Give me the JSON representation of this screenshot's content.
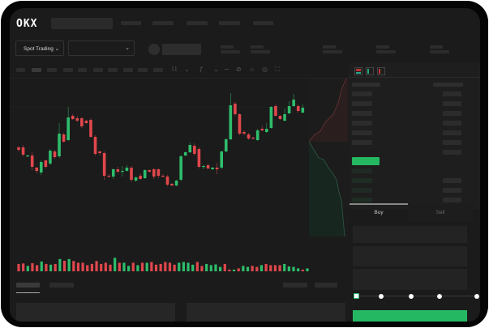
{
  "header": {
    "logo_text": "OKX"
  },
  "toolbar": {
    "market_type_label": "Spot Trading",
    "chevron_icon": "chevron-down-icon"
  },
  "order_form": {
    "tabs": [
      {
        "label": "Buy",
        "active": true
      },
      {
        "label": "Sell",
        "active": false
      }
    ]
  },
  "order_book": {
    "view_icons": [
      "order-book-both-icon",
      "order-book-bids-icon",
      "order-book-asks-icon"
    ]
  },
  "colors": {
    "up": "#2ebd6b",
    "down": "#e0474c",
    "background": "#1b1b1b",
    "accent": "#25b863"
  },
  "chart_data": {
    "type": "candlestick",
    "candles": [
      [
        118,
        120,
        113,
        115
      ],
      [
        118,
        121,
        107,
        109
      ],
      [
        107,
        109,
        106,
        108
      ],
      [
        108,
        112,
        90,
        94
      ],
      [
        93,
        94,
        86,
        89
      ],
      [
        87,
        102,
        84,
        100
      ],
      [
        102,
        103,
        92,
        94
      ],
      [
        98,
        116,
        96,
        114
      ],
      [
        113,
        115,
        104,
        106
      ],
      [
        107,
        148,
        105,
        135
      ],
      [
        134,
        136,
        124,
        125
      ],
      [
        127,
        168,
        126,
        155
      ],
      [
        157,
        159,
        152,
        153
      ],
      [
        154,
        157,
        149,
        151
      ],
      [
        154,
        156,
        142,
        144
      ],
      [
        151,
        152,
        147,
        148
      ],
      [
        152,
        154,
        130,
        131
      ],
      [
        131,
        133,
        108,
        110
      ],
      [
        113,
        114,
        108,
        111
      ],
      [
        111,
        113,
        78,
        83
      ],
      [
        83,
        85,
        81,
        82
      ],
      [
        82,
        92,
        79,
        91
      ],
      [
        91,
        94,
        86,
        88
      ],
      [
        88,
        95,
        82,
        89
      ],
      [
        89,
        96,
        88,
        93
      ],
      [
        93,
        95,
        75,
        78
      ],
      [
        77,
        82,
        75,
        81
      ],
      [
        83,
        86,
        78,
        79
      ],
      [
        80,
        91,
        79,
        90
      ],
      [
        90,
        91,
        87,
        88
      ],
      [
        91,
        93,
        79,
        82
      ],
      [
        91,
        92,
        80,
        83
      ],
      [
        83,
        85,
        81,
        82
      ],
      [
        82,
        84,
        70,
        72
      ],
      [
        73,
        74,
        70,
        71
      ],
      [
        71,
        78,
        70,
        77
      ],
      [
        78,
        109,
        76,
        107
      ],
      [
        108,
        113,
        107,
        112
      ],
      [
        112,
        124,
        111,
        121
      ],
      [
        120,
        123,
        108,
        110
      ],
      [
        116,
        118,
        92,
        94
      ],
      [
        94,
        97,
        91,
        95
      ],
      [
        96,
        98,
        91,
        92
      ],
      [
        91,
        94,
        90,
        93
      ],
      [
        93,
        99,
        85,
        91
      ],
      [
        93,
        114,
        91,
        113
      ],
      [
        113,
        130,
        112,
        128
      ],
      [
        128,
        185,
        127,
        170
      ],
      [
        172,
        174,
        157,
        159
      ],
      [
        159,
        160,
        133,
        135
      ],
      [
        137,
        139,
        133,
        135
      ],
      [
        134,
        136,
        127,
        129
      ],
      [
        130,
        131,
        128,
        129
      ],
      [
        127,
        141,
        126,
        139
      ],
      [
        141,
        145,
        138,
        139
      ],
      [
        137,
        148,
        136,
        141
      ],
      [
        142,
        169,
        141,
        168
      ],
      [
        169,
        171,
        156,
        157
      ],
      [
        157,
        158,
        152,
        153
      ],
      [
        151,
        166,
        150,
        159
      ],
      [
        160,
        175,
        159,
        169
      ],
      [
        169,
        184,
        168,
        177
      ],
      [
        169,
        171,
        161,
        163
      ],
      [
        161,
        171,
        160,
        167
      ]
    ],
    "volume": [
      {
        "v": 30,
        "dir": "down"
      },
      {
        "v": 32,
        "dir": "down"
      },
      {
        "v": 22,
        "dir": "up"
      },
      {
        "v": 33,
        "dir": "down"
      },
      {
        "v": 25,
        "dir": "down"
      },
      {
        "v": 40,
        "dir": "up"
      },
      {
        "v": 30,
        "dir": "down"
      },
      {
        "v": 27,
        "dir": "up"
      },
      {
        "v": 30,
        "dir": "down"
      },
      {
        "v": 50,
        "dir": "up"
      },
      {
        "v": 43,
        "dir": "down"
      },
      {
        "v": 50,
        "dir": "up"
      },
      {
        "v": 42,
        "dir": "down"
      },
      {
        "v": 35,
        "dir": "down"
      },
      {
        "v": 35,
        "dir": "down"
      },
      {
        "v": 25,
        "dir": "down"
      },
      {
        "v": 30,
        "dir": "down"
      },
      {
        "v": 42,
        "dir": "down"
      },
      {
        "v": 30,
        "dir": "down"
      },
      {
        "v": 35,
        "dir": "down"
      },
      {
        "v": 27,
        "dir": "down"
      },
      {
        "v": 55,
        "dir": "up"
      },
      {
        "v": 35,
        "dir": "down"
      },
      {
        "v": 35,
        "dir": "up"
      },
      {
        "v": 22,
        "dir": "up"
      },
      {
        "v": 35,
        "dir": "down"
      },
      {
        "v": 25,
        "dir": "up"
      },
      {
        "v": 35,
        "dir": "down"
      },
      {
        "v": 35,
        "dir": "up"
      },
      {
        "v": 38,
        "dir": "down"
      },
      {
        "v": 27,
        "dir": "down"
      },
      {
        "v": 30,
        "dir": "down"
      },
      {
        "v": 38,
        "dir": "down"
      },
      {
        "v": 35,
        "dir": "down"
      },
      {
        "v": 27,
        "dir": "down"
      },
      {
        "v": 35,
        "dir": "up"
      },
      {
        "v": 38,
        "dir": "up"
      },
      {
        "v": 35,
        "dir": "up"
      },
      {
        "v": 27,
        "dir": "up"
      },
      {
        "v": 38,
        "dir": "down"
      },
      {
        "v": 22,
        "dir": "down"
      },
      {
        "v": 30,
        "dir": "up"
      },
      {
        "v": 25,
        "dir": "up"
      },
      {
        "v": 28,
        "dir": "up"
      },
      {
        "v": 18,
        "dir": "up"
      },
      {
        "v": 30,
        "dir": "down"
      },
      {
        "v": 7,
        "dir": "down"
      },
      {
        "v": 7,
        "dir": "up"
      },
      {
        "v": 12,
        "dir": "down"
      },
      {
        "v": 22,
        "dir": "up"
      },
      {
        "v": 18,
        "dir": "up"
      },
      {
        "v": 22,
        "dir": "down"
      },
      {
        "v": 18,
        "dir": "down"
      },
      {
        "v": 25,
        "dir": "up"
      },
      {
        "v": 30,
        "dir": "down"
      },
      {
        "v": 25,
        "dir": "down"
      },
      {
        "v": 25,
        "dir": "down"
      },
      {
        "v": 25,
        "dir": "down"
      },
      {
        "v": 30,
        "dir": "up"
      },
      {
        "v": 20,
        "dir": "up"
      },
      {
        "v": 18,
        "dir": "up"
      },
      {
        "v": 12,
        "dir": "up"
      },
      {
        "v": 7,
        "dir": "down"
      },
      {
        "v": 12,
        "dir": "up"
      }
    ]
  },
  "order_amount_slider": {
    "level_percent": 0,
    "stops": 5
  }
}
